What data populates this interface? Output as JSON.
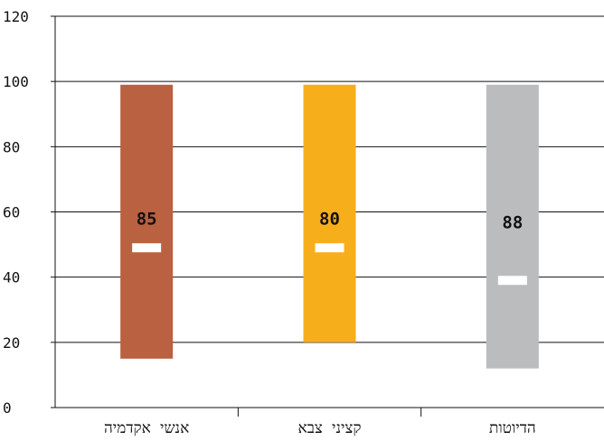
{
  "chart_data": {
    "type": "bar",
    "subtype": "floating-range",
    "categories": [
      "אנשי אקדמיה",
      "קציני צבא",
      "הדיוטות"
    ],
    "ranges": [
      {
        "category": "אנשי אקדמיה",
        "low": 15,
        "high": 99,
        "marker": 49,
        "label": "85",
        "color": "#b96140"
      },
      {
        "category": "קציני צבא",
        "low": 20,
        "high": 99,
        "marker": 49,
        "label": "80",
        "color": "#f7ae1b"
      },
      {
        "category": "הדיוטות",
        "low": 12,
        "high": 99,
        "marker": 39,
        "label": "88",
        "color": "#bbbcbe"
      }
    ],
    "y_ticks": [
      0,
      20,
      40,
      60,
      80,
      100,
      120
    ],
    "ylim": [
      0,
      120
    ],
    "grid": true,
    "title": "",
    "xlabel": "",
    "ylabel": ""
  }
}
